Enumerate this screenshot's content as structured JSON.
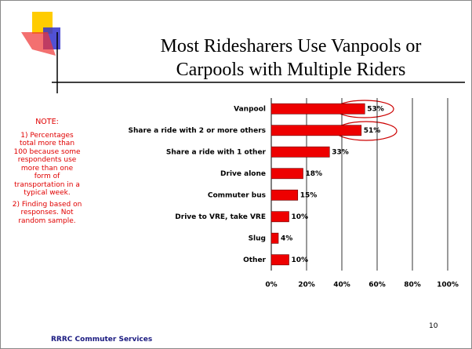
{
  "slide": {
    "note_heading": "NOTE:",
    "notes": [
      "1) Percentages total more than 100 because some respondents use more than one form of transportation in a typical week.",
      "2) Finding based on responses. Not random sample."
    ],
    "footer": "RRRC Commuter Services",
    "page_number": "10"
  },
  "chart_data": {
    "type": "bar",
    "orientation": "horizontal",
    "title": "Most Ridesharers Use Vanpools or Carpools with Multiple Riders",
    "categories": [
      "Vanpool",
      "Share a ride with 2 or more others",
      "Share a ride with 1 other",
      "Drive alone",
      "Commuter bus",
      "Drive to VRE, take VRE",
      "Slug",
      "Other"
    ],
    "values": [
      53,
      51,
      33,
      18,
      15,
      10,
      4,
      10
    ],
    "value_labels": [
      "53%",
      "51%",
      "33%",
      "18%",
      "15%",
      "10%",
      "4%",
      "10%"
    ],
    "color": "#ee0000",
    "xlim": [
      0,
      100
    ],
    "xticks": [
      {
        "value": 0,
        "label": "0%"
      },
      {
        "value": 20,
        "label": "20%"
      },
      {
        "value": 40,
        "label": "40%"
      },
      {
        "value": 60,
        "label": "60%"
      },
      {
        "value": 80,
        "label": "80%"
      },
      {
        "value": 100,
        "label": "100%"
      }
    ],
    "grid": true
  }
}
